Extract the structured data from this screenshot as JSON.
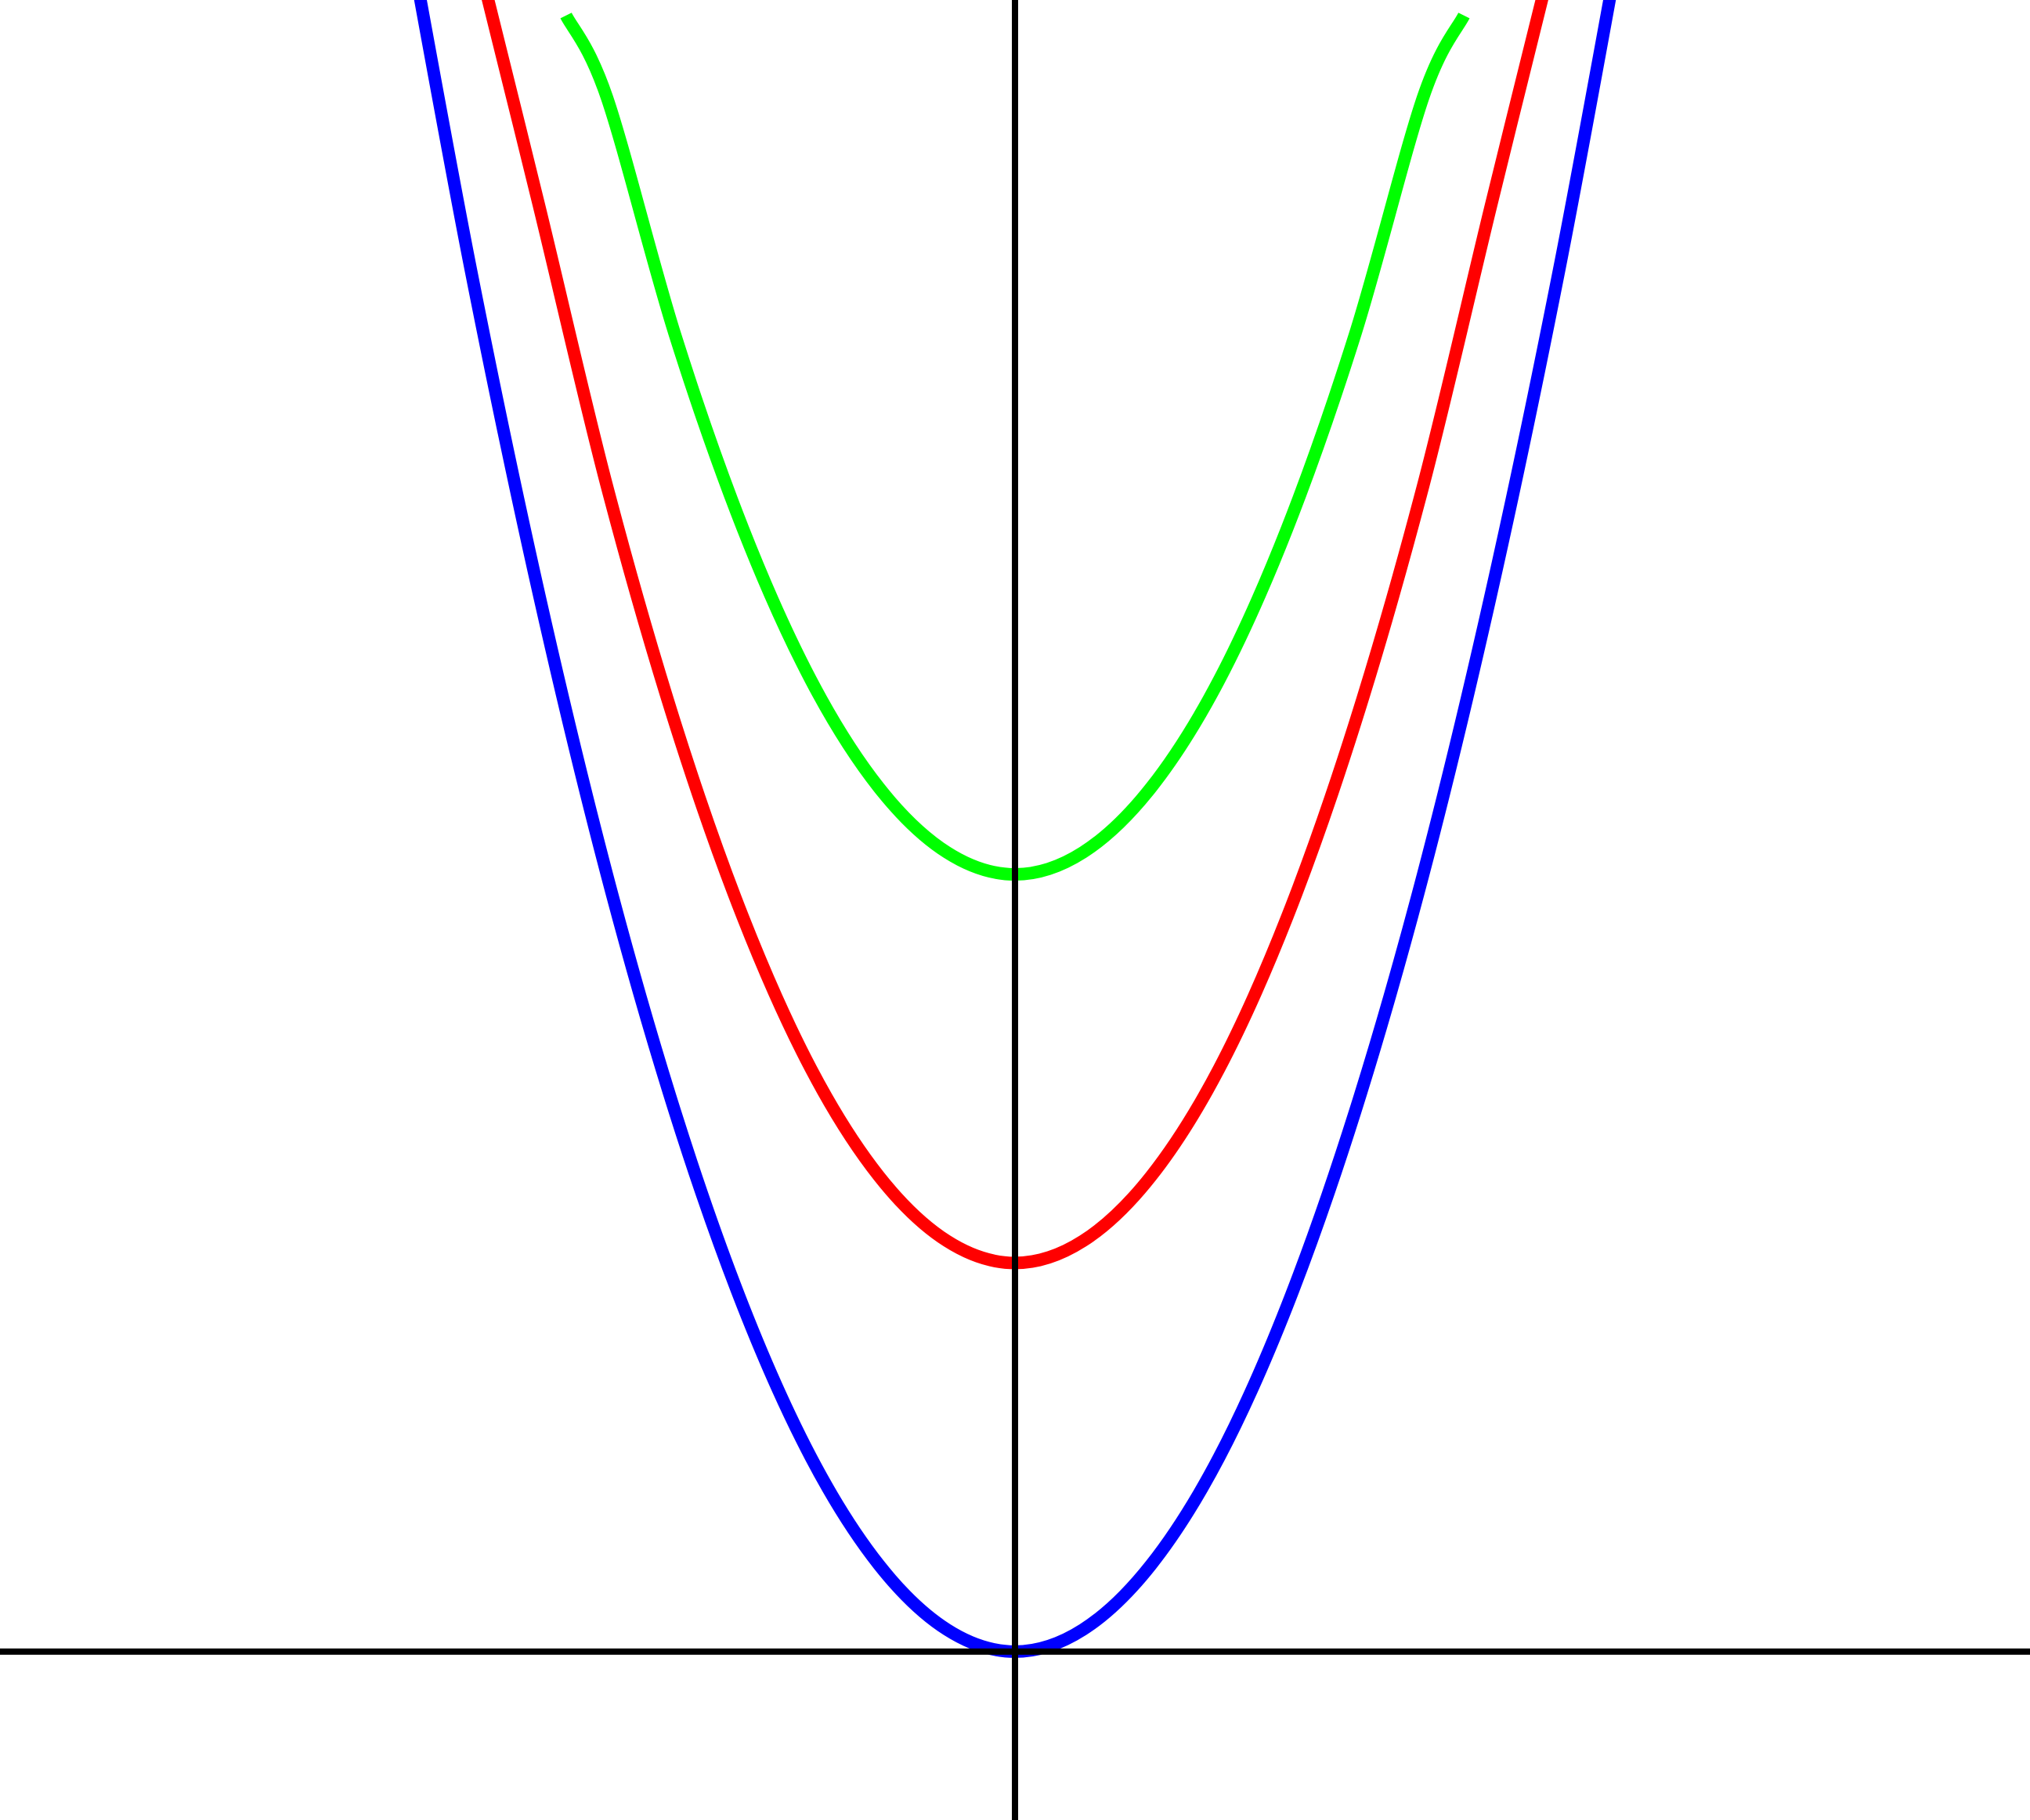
{
  "chart_data": {
    "type": "line",
    "title": "",
    "xlabel": "",
    "ylabel": "",
    "xlim": [
      -7.46,
      7.46
    ],
    "ylim": [
      -1.3,
      12.75
    ],
    "grid": false,
    "legend": "none",
    "axes": {
      "show_x_axis": true,
      "show_y_axis": true,
      "color": "#000000"
    },
    "series": [
      {
        "color": "#0000ff",
        "x": [
          -4.5,
          -4,
          -3.5,
          -3,
          -2.5,
          -2,
          -1.5,
          -1,
          -0.5,
          0,
          0.5,
          1,
          1.5,
          2,
          2.5,
          3,
          3.5,
          4,
          4.5
        ],
        "y": [
          13.5,
          10.67,
          8.17,
          6.0,
          4.17,
          2.67,
          1.5,
          0.67,
          0.17,
          0.0,
          0.17,
          0.67,
          1.5,
          2.67,
          4.17,
          6.0,
          8.17,
          10.67,
          13.5
        ]
      },
      {
        "color": "#ff0000",
        "x": [
          -3.95,
          -3.5,
          -3,
          -2.5,
          -2,
          -1.5,
          -1,
          -0.5,
          0,
          0.5,
          1,
          1.5,
          2,
          2.5,
          3,
          3.5,
          3.95
        ],
        "y": [
          13.08,
          11.17,
          9.0,
          7.17,
          5.67,
          4.5,
          3.67,
          3.17,
          3.0,
          3.17,
          3.67,
          4.5,
          5.67,
          7.17,
          9.0,
          11.17,
          13.08
        ]
      },
      {
        "color": "#00ff00",
        "x": [
          -3.3,
          -3,
          -2.5,
          -2,
          -1.5,
          -1,
          -0.5,
          0,
          0.5,
          1,
          1.5,
          2,
          2.5,
          3,
          3.3
        ],
        "y": [
          12.63,
          12.0,
          10.17,
          8.67,
          7.5,
          6.67,
          6.17,
          6.0,
          6.17,
          6.67,
          7.5,
          8.67,
          10.17,
          12.0,
          12.63
        ]
      }
    ]
  }
}
